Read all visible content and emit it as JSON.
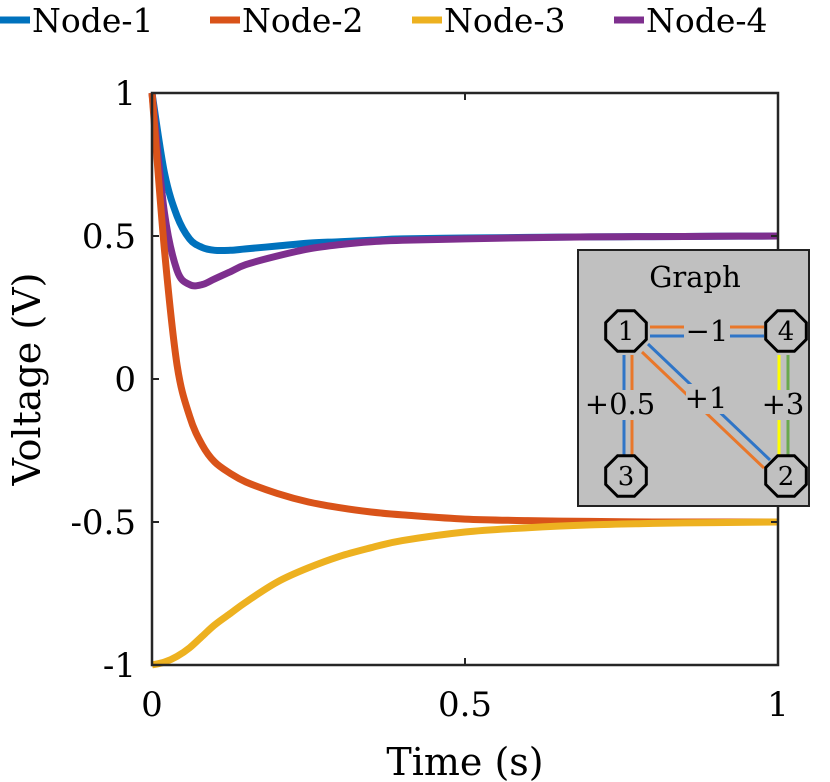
{
  "chart_data": {
    "type": "line",
    "title": "",
    "xlabel": "Time (s)",
    "ylabel": "Voltage (V)",
    "xlim": [
      0,
      1
    ],
    "ylim": [
      -1,
      1
    ],
    "xticks": [
      0,
      0.5,
      1
    ],
    "xtick_labels": [
      "0",
      "0.5",
      "1"
    ],
    "yticks": [
      -1,
      -0.5,
      0,
      0.5,
      1
    ],
    "ytick_labels": [
      "-1",
      "-0.5",
      "0",
      "0.5",
      "1"
    ],
    "grid": false,
    "legend_position": "top",
    "x": [
      0,
      0.02,
      0.04,
      0.06,
      0.08,
      0.1,
      0.125,
      0.15,
      0.2,
      0.25,
      0.3,
      0.35,
      0.4,
      0.5,
      0.6,
      0.7,
      0.8,
      0.9,
      1.0
    ],
    "series": [
      {
        "name": "Node-1",
        "color": "#0072BD",
        "values": [
          1.0,
          0.72,
          0.57,
          0.49,
          0.46,
          0.45,
          0.45,
          0.455,
          0.465,
          0.475,
          0.48,
          0.485,
          0.49,
          0.493,
          0.495,
          0.497,
          0.498,
          0.499,
          0.5
        ]
      },
      {
        "name": "Node-2",
        "color": "#D95319",
        "values": [
          1.0,
          0.45,
          0.05,
          -0.13,
          -0.23,
          -0.29,
          -0.33,
          -0.36,
          -0.4,
          -0.43,
          -0.45,
          -0.465,
          -0.475,
          -0.49,
          -0.495,
          -0.498,
          -0.5,
          -0.5,
          -0.5
        ]
      },
      {
        "name": "Node-3",
        "color": "#EDB120",
        "values": [
          -1.0,
          -0.99,
          -0.97,
          -0.94,
          -0.9,
          -0.86,
          -0.82,
          -0.78,
          -0.71,
          -0.66,
          -0.62,
          -0.59,
          -0.565,
          -0.535,
          -0.52,
          -0.51,
          -0.505,
          -0.502,
          -0.5
        ]
      },
      {
        "name": "Node-4",
        "color": "#7E2F8E",
        "values": [
          1.0,
          0.58,
          0.38,
          0.33,
          0.33,
          0.35,
          0.375,
          0.4,
          0.43,
          0.455,
          0.47,
          0.48,
          0.485,
          0.49,
          0.494,
          0.497,
          0.498,
          0.499,
          0.5
        ]
      }
    ],
    "inset": {
      "title": "Graph",
      "nodes": [
        "1",
        "2",
        "3",
        "4"
      ],
      "edges": [
        {
          "from": "1",
          "to": "4",
          "label": "−1"
        },
        {
          "from": "1",
          "to": "2",
          "label": "+1"
        },
        {
          "from": "1",
          "to": "3",
          "label": "+0.5"
        },
        {
          "from": "4",
          "to": "2",
          "label": "+3"
        }
      ],
      "colors": {
        "background": "#C0C0C0",
        "edge_blue": "#2F75C7",
        "edge_orange": "#E9772A",
        "edge_yellow": "#FFFF00",
        "edge_green": "#6AA84F"
      }
    }
  }
}
